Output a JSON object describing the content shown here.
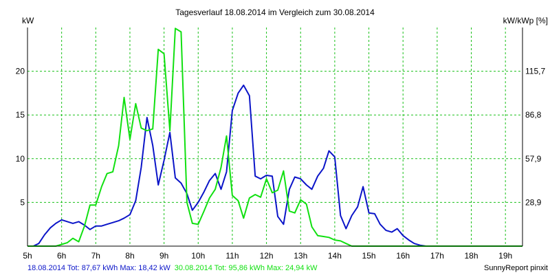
{
  "chart_data": {
    "type": "line",
    "title": "Tagesverlauf 18.08.2014 im Vergleich zum 30.08.2014",
    "ylabel_left": "kW",
    "ylabel_right": "kW/kWp [%]",
    "xlim": [
      5.0,
      19.5
    ],
    "ylim": [
      0,
      25
    ],
    "grid": true,
    "x_ticks": [
      {
        "v": 5,
        "label": "5h"
      },
      {
        "v": 6,
        "label": "6h"
      },
      {
        "v": 7,
        "label": "7h"
      },
      {
        "v": 8,
        "label": "8h"
      },
      {
        "v": 9,
        "label": "9h"
      },
      {
        "v": 10,
        "label": "10h"
      },
      {
        "v": 11,
        "label": "11h"
      },
      {
        "v": 12,
        "label": "12h"
      },
      {
        "v": 13,
        "label": "13h"
      },
      {
        "v": 14,
        "label": "14h"
      },
      {
        "v": 15,
        "label": "15h"
      },
      {
        "v": 16,
        "label": "16h"
      },
      {
        "v": 17,
        "label": "17h"
      },
      {
        "v": 18,
        "label": "18h"
      },
      {
        "v": 19,
        "label": "19h"
      }
    ],
    "y_ticks_left": [
      {
        "v": 5,
        "label": "5"
      },
      {
        "v": 10,
        "label": "10"
      },
      {
        "v": 15,
        "label": "15"
      },
      {
        "v": 20,
        "label": "20"
      }
    ],
    "y_ticks_right": [
      {
        "v": 5,
        "label": "28,9"
      },
      {
        "v": 10,
        "label": "57,9"
      },
      {
        "v": 15,
        "label": "86,8"
      },
      {
        "v": 20,
        "label": "115,7"
      }
    ],
    "series": [
      {
        "color": "#0a14c8",
        "x": [
          5.0,
          5.17,
          5.33,
          5.5,
          5.67,
          5.83,
          6.0,
          6.17,
          6.33,
          6.5,
          6.67,
          6.83,
          7.0,
          7.17,
          7.33,
          7.5,
          7.67,
          7.83,
          8.0,
          8.17,
          8.33,
          8.5,
          8.67,
          8.83,
          9.0,
          9.17,
          9.33,
          9.5,
          9.67,
          9.83,
          10.0,
          10.17,
          10.33,
          10.5,
          10.67,
          10.83,
          11.0,
          11.17,
          11.33,
          11.5,
          11.67,
          11.83,
          12.0,
          12.17,
          12.33,
          12.5,
          12.67,
          12.83,
          13.0,
          13.17,
          13.33,
          13.5,
          13.67,
          13.83,
          14.0,
          14.17,
          14.33,
          14.5,
          14.67,
          14.83,
          15.0,
          15.17,
          15.33,
          15.5,
          15.67,
          15.83,
          16.0,
          16.17,
          16.33,
          16.5,
          16.67,
          16.83,
          17.0,
          17.17,
          17.33,
          17.5,
          17.67,
          17.83,
          18.0,
          18.17,
          18.33,
          18.5,
          18.67,
          18.83,
          19.0,
          19.17,
          19.33,
          19.5
        ],
        "y": [
          0.0,
          0.0,
          0.3,
          1.3,
          2.1,
          2.6,
          3.0,
          2.8,
          2.6,
          2.8,
          2.4,
          1.9,
          2.3,
          2.3,
          2.5,
          2.7,
          2.9,
          3.2,
          3.6,
          5.2,
          9.0,
          14.7,
          11.5,
          7.0,
          9.8,
          13.0,
          7.8,
          7.2,
          6.0,
          4.1,
          5.0,
          6.2,
          7.5,
          8.3,
          6.5,
          8.5,
          15.5,
          17.5,
          18.4,
          17.2,
          8.0,
          7.7,
          8.1,
          8.0,
          3.4,
          2.5,
          6.5,
          7.9,
          7.7,
          7.0,
          6.5,
          8.0,
          8.9,
          10.9,
          10.2,
          3.5,
          2.0,
          3.5,
          4.5,
          6.8,
          3.8,
          3.7,
          2.5,
          1.8,
          1.6,
          2.0,
          1.2,
          0.7,
          0.3,
          0.1,
          0.0,
          0.0,
          0.0,
          0.0,
          0.0,
          0.0,
          0.0,
          0.0,
          0.0,
          0.0,
          0.0,
          0.0,
          0.0,
          0.0,
          0.0,
          0.0,
          0.0,
          0.0
        ]
      },
      {
        "color": "#10e010",
        "x": [
          5.0,
          5.17,
          5.33,
          5.5,
          5.67,
          5.83,
          6.0,
          6.17,
          6.33,
          6.5,
          6.67,
          6.83,
          7.0,
          7.17,
          7.33,
          7.5,
          7.67,
          7.83,
          8.0,
          8.17,
          8.33,
          8.5,
          8.67,
          8.83,
          9.0,
          9.17,
          9.33,
          9.5,
          9.67,
          9.83,
          10.0,
          10.17,
          10.33,
          10.5,
          10.67,
          10.83,
          11.0,
          11.17,
          11.33,
          11.5,
          11.67,
          11.83,
          12.0,
          12.17,
          12.33,
          12.5,
          12.67,
          12.83,
          13.0,
          13.17,
          13.33,
          13.5,
          13.67,
          13.83,
          14.0,
          14.17,
          14.33,
          14.5,
          14.67,
          14.83,
          15.0,
          15.17,
          15.33,
          15.5,
          15.67,
          15.83,
          16.0,
          16.17,
          16.33,
          16.5,
          16.67,
          16.83,
          17.0,
          17.17,
          17.33,
          17.5,
          17.67,
          17.83,
          18.0,
          18.17,
          18.33,
          18.5,
          18.67,
          18.83,
          19.0,
          19.17,
          19.33,
          19.5
        ],
        "y": [
          0.0,
          0.0,
          0.0,
          0.0,
          0.0,
          0.0,
          0.2,
          0.4,
          0.9,
          0.5,
          2.3,
          4.7,
          4.7,
          6.8,
          8.3,
          8.5,
          11.5,
          17.0,
          12.2,
          16.3,
          13.5,
          13.2,
          13.4,
          22.5,
          22.0,
          13.2,
          24.9,
          24.5,
          5.0,
          2.6,
          2.5,
          4.0,
          5.5,
          6.5,
          9.0,
          12.6,
          5.8,
          5.2,
          3.2,
          5.5,
          5.9,
          5.6,
          7.7,
          6.1,
          6.4,
          8.6,
          4.0,
          3.8,
          5.3,
          4.8,
          2.2,
          1.2,
          1.1,
          1.0,
          0.7,
          0.6,
          0.3,
          0.0,
          0.0,
          0.0,
          0.0,
          0.0,
          0.0,
          0.0,
          0.0,
          0.0,
          0.0,
          0.0,
          0.0,
          0.0,
          0.0,
          0.0,
          0.0,
          0.0,
          0.0,
          0.0,
          0.0,
          0.0,
          0.0,
          0.0,
          0.0,
          0.0,
          0.0,
          0.0,
          0.0,
          0.0,
          0.0,
          0.0
        ]
      }
    ],
    "footer": [
      {
        "text": "18.08.2014 Tot: 87,67 kWh Max: 18,42 kW",
        "color": "#0a14c8"
      },
      {
        "text": "30.08.2014 Tot: 95,86 kWh Max: 24,94 kW",
        "color": "#10e010"
      }
    ],
    "credit": "SunnyReport pinxit",
    "grid_color": "#18c018",
    "axis_color": "#000000"
  }
}
